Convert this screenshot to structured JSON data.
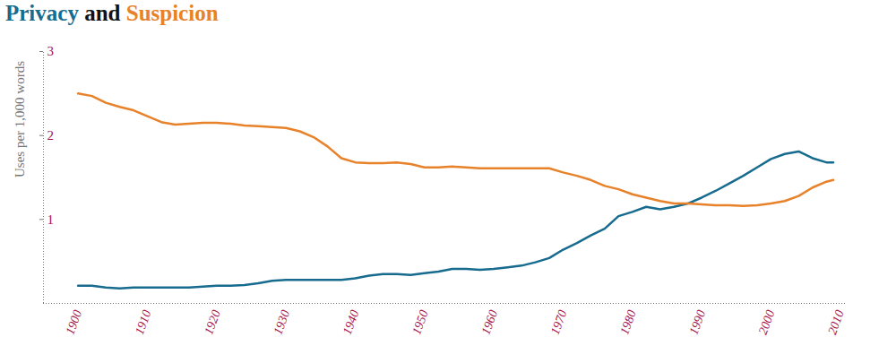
{
  "chart_data": {
    "type": "line",
    "title": "Privacy and Suspicion",
    "y_label": "Uses per 1,000 words",
    "x": [
      1900,
      1902,
      1904,
      1906,
      1908,
      1910,
      1912,
      1914,
      1916,
      1918,
      1920,
      1922,
      1924,
      1926,
      1928,
      1930,
      1932,
      1934,
      1936,
      1938,
      1940,
      1942,
      1944,
      1946,
      1948,
      1950,
      1952,
      1954,
      1956,
      1958,
      1960,
      1962,
      1964,
      1966,
      1968,
      1970,
      1972,
      1974,
      1976,
      1978,
      1980,
      1982,
      1984,
      1986,
      1988,
      1990,
      1992,
      1994,
      1996,
      1998,
      2000,
      2002,
      2004,
      2006,
      2008,
      2009
    ],
    "series": [
      {
        "name": "Privacy",
        "color": "#176b8e",
        "values": [
          0.21,
          0.21,
          0.19,
          0.18,
          0.19,
          0.19,
          0.19,
          0.19,
          0.19,
          0.2,
          0.21,
          0.21,
          0.22,
          0.24,
          0.27,
          0.28,
          0.28,
          0.28,
          0.28,
          0.28,
          0.3,
          0.33,
          0.35,
          0.35,
          0.34,
          0.36,
          0.38,
          0.41,
          0.41,
          0.4,
          0.41,
          0.43,
          0.45,
          0.49,
          0.54,
          0.64,
          0.72,
          0.81,
          0.89,
          1.04,
          1.09,
          1.15,
          1.12,
          1.15,
          1.19,
          1.26,
          1.34,
          1.43,
          1.52,
          1.62,
          1.72,
          1.78,
          1.81,
          1.73,
          1.68,
          1.68
        ]
      },
      {
        "name": "Suspicion",
        "color": "#e8822a",
        "values": [
          2.5,
          2.47,
          2.39,
          2.34,
          2.3,
          2.23,
          2.16,
          2.13,
          2.14,
          2.15,
          2.15,
          2.14,
          2.12,
          2.11,
          2.1,
          2.09,
          2.05,
          1.98,
          1.87,
          1.73,
          1.68,
          1.67,
          1.67,
          1.68,
          1.66,
          1.62,
          1.62,
          1.63,
          1.62,
          1.61,
          1.61,
          1.61,
          1.61,
          1.61,
          1.61,
          1.56,
          1.52,
          1.47,
          1.4,
          1.36,
          1.3,
          1.26,
          1.22,
          1.19,
          1.19,
          1.18,
          1.17,
          1.17,
          1.16,
          1.17,
          1.19,
          1.22,
          1.28,
          1.38,
          1.45,
          1.47
        ]
      }
    ],
    "xlim": [
      1895,
      2011
    ],
    "xticks": [
      1900,
      1910,
      1920,
      1930,
      1940,
      1950,
      1960,
      1970,
      1980,
      1990,
      2000,
      2010
    ],
    "ylim": [
      0,
      3
    ],
    "yticks": [
      1,
      2,
      3
    ],
    "grid": false
  }
}
